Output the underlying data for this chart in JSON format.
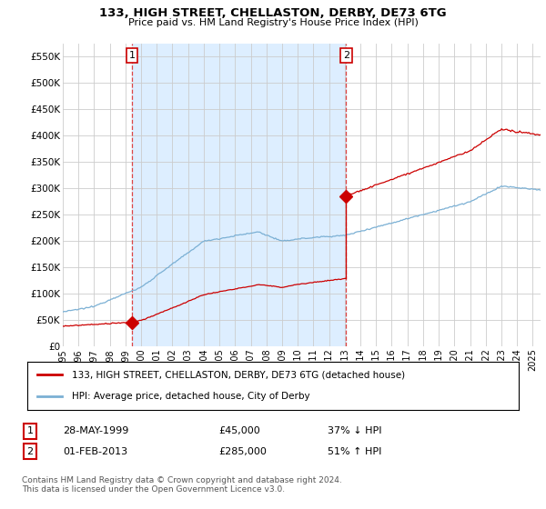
{
  "title": "133, HIGH STREET, CHELLASTON, DERBY, DE73 6TG",
  "subtitle": "Price paid vs. HM Land Registry's House Price Index (HPI)",
  "ylabel_ticks": [
    "£0",
    "£50K",
    "£100K",
    "£150K",
    "£200K",
    "£250K",
    "£300K",
    "£350K",
    "£400K",
    "£450K",
    "£500K",
    "£550K"
  ],
  "ytick_values": [
    0,
    50000,
    100000,
    150000,
    200000,
    250000,
    300000,
    350000,
    400000,
    450000,
    500000,
    550000
  ],
  "ylim": [
    0,
    575000
  ],
  "xlim_start": 1995.0,
  "xlim_end": 2025.5,
  "sale1_x": 1999.41,
  "sale1_y": 45000,
  "sale2_x": 2013.08,
  "sale2_y": 285000,
  "legend_line1": "133, HIGH STREET, CHELLASTON, DERBY, DE73 6TG (detached house)",
  "legend_line2": "HPI: Average price, detached house, City of Derby",
  "table_row1": [
    "1",
    "28-MAY-1999",
    "£45,000",
    "37% ↓ HPI"
  ],
  "table_row2": [
    "2",
    "01-FEB-2013",
    "£285,000",
    "51% ↑ HPI"
  ],
  "footnote": "Contains HM Land Registry data © Crown copyright and database right 2024.\nThis data is licensed under the Open Government Licence v3.0.",
  "line_color_red": "#cc0000",
  "line_color_blue": "#7bb0d4",
  "shade_color": "#ddeeff",
  "vline_color": "#dd4444",
  "grid_color": "#cccccc",
  "bg_color": "#ffffff"
}
